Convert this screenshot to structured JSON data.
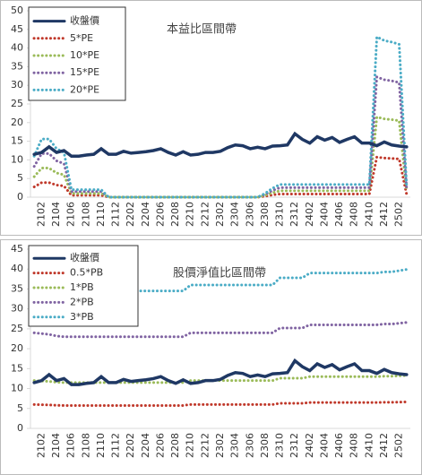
{
  "chart_data": [
    {
      "type": "line",
      "title": "本益比區間帶",
      "legend": "upper left",
      "categories": [
        null,
        "2102",
        null,
        "2104",
        null,
        "2106",
        null,
        "2108",
        null,
        "2110",
        null,
        "2112",
        null,
        "2202",
        null,
        "2204",
        null,
        "2206",
        null,
        "2208",
        null,
        "2210",
        null,
        "2212",
        null,
        "2302",
        null,
        "2304",
        null,
        "2306",
        null,
        "2308",
        null,
        "2310",
        null,
        "2312",
        null,
        "2402",
        null,
        "2404",
        null,
        "2406",
        null,
        "2408",
        null,
        "2410",
        null,
        "2412",
        null,
        "2502",
        null
      ],
      "ylim": [
        0,
        50
      ],
      "yticks": [
        0,
        5,
        10,
        15,
        20,
        25,
        30,
        35,
        40,
        45,
        50
      ],
      "series": [
        {
          "name": "收盤價",
          "color": "#1f3864",
          "line_style": "solid",
          "values": [
            11.5,
            12,
            13.5,
            12,
            12.5,
            11,
            11,
            11.3,
            11.5,
            13,
            11.5,
            11.5,
            12.3,
            11.8,
            12,
            12.2,
            12.5,
            13,
            12,
            11.3,
            12.2,
            11.3,
            11.5,
            12,
            12,
            12.3,
            13.3,
            14,
            13.8,
            13,
            13.4,
            13,
            13.7,
            13.8,
            14,
            17,
            15.5,
            14.5,
            16.2,
            15.3,
            16,
            14.7,
            15.5,
            16.2,
            14.5,
            14.5,
            13.8,
            14.8,
            14,
            13.7,
            13.5
          ]
        },
        {
          "name": "5*PE",
          "color": "#c0392b",
          "line_style": "dotted",
          "values": [
            2.75,
            3.9,
            3.9,
            3.25,
            3,
            0.5,
            0.5,
            0.5,
            0.5,
            0.5,
            0,
            0,
            0,
            0,
            0,
            0,
            0,
            0,
            0,
            0,
            0,
            0,
            0,
            0,
            0,
            0,
            0,
            0,
            0,
            0,
            0,
            0.25,
            0.6,
            0.85,
            0.85,
            0.85,
            0.85,
            0.85,
            0.85,
            0.85,
            0.85,
            0.85,
            0.85,
            0.85,
            0.85,
            0.85,
            10.75,
            10.5,
            10.4,
            10.25,
            0.75
          ]
        },
        {
          "name": "10*PE",
          "color": "#9bbb59",
          "line_style": "dotted",
          "values": [
            5.5,
            7.8,
            7.8,
            6.5,
            6,
            1,
            1,
            1,
            1,
            1,
            0,
            0,
            0,
            0,
            0,
            0,
            0,
            0,
            0,
            0,
            0,
            0,
            0,
            0,
            0,
            0,
            0,
            0,
            0,
            0,
            0,
            0.5,
            1.2,
            1.7,
            1.7,
            1.7,
            1.7,
            1.7,
            1.7,
            1.7,
            1.7,
            1.7,
            1.7,
            1.7,
            1.7,
            1.7,
            21.5,
            21,
            20.8,
            20.5,
            1.5
          ]
        },
        {
          "name": "15*PE",
          "color": "#8064a2",
          "line_style": "dotted",
          "values": [
            8.25,
            11.7,
            11.7,
            9.75,
            9,
            1.5,
            1.5,
            1.5,
            1.5,
            1.5,
            0,
            0,
            0,
            0,
            0,
            0,
            0,
            0,
            0,
            0,
            0,
            0,
            0,
            0,
            0,
            0,
            0,
            0,
            0,
            0,
            0,
            0.75,
            1.8,
            2.55,
            2.55,
            2.55,
            2.55,
            2.55,
            2.55,
            2.55,
            2.55,
            2.55,
            2.55,
            2.55,
            2.55,
            2.55,
            32.25,
            31.5,
            31.2,
            30.75,
            2.25
          ]
        },
        {
          "name": "20*PE",
          "color": "#4bacc6",
          "line_style": "dotted",
          "values": [
            11,
            15.6,
            15.6,
            13,
            12,
            2,
            2,
            2,
            2,
            2,
            0,
            0,
            0,
            0,
            0,
            0,
            0,
            0,
            0,
            0,
            0,
            0,
            0,
            0,
            0,
            0,
            0,
            0,
            0,
            0,
            0,
            1,
            2.4,
            3.4,
            3.4,
            3.4,
            3.4,
            3.4,
            3.4,
            3.4,
            3.4,
            3.4,
            3.4,
            3.4,
            3.4,
            3.4,
            43,
            42,
            41.6,
            41,
            3
          ]
        }
      ]
    },
    {
      "type": "line",
      "title": "股價淨值比區間帶",
      "legend": "upper left",
      "categories": [
        null,
        "2102",
        null,
        "2104",
        null,
        "2106",
        null,
        "2108",
        null,
        "2110",
        null,
        "2112",
        null,
        "2202",
        null,
        "2204",
        null,
        "2206",
        null,
        "2208",
        null,
        "2210",
        null,
        "2212",
        null,
        "2302",
        null,
        "2304",
        null,
        "2306",
        null,
        "2308",
        null,
        "2310",
        null,
        "2312",
        null,
        "2402",
        null,
        "2404",
        null,
        "2406",
        null,
        "2408",
        null,
        "2410",
        null,
        "2412",
        null,
        "2502",
        null
      ],
      "ylim": [
        0,
        45
      ],
      "yticks": [
        0,
        5,
        10,
        15,
        20,
        25,
        30,
        35,
        40,
        45
      ],
      "series": [
        {
          "name": "收盤價",
          "color": "#1f3864",
          "line_style": "solid",
          "values": [
            11.5,
            12,
            13.5,
            12,
            12.5,
            11,
            11,
            11.3,
            11.5,
            13,
            11.5,
            11.5,
            12.3,
            11.8,
            12,
            12.2,
            12.5,
            13,
            12,
            11.3,
            12.2,
            11.3,
            11.5,
            12,
            12,
            12.3,
            13.3,
            14,
            13.8,
            13,
            13.4,
            13,
            13.7,
            13.8,
            14,
            17,
            15.5,
            14.5,
            16.2,
            15.3,
            16,
            14.7,
            15.5,
            16.2,
            14.5,
            14.5,
            13.8,
            14.8,
            14,
            13.7,
            13.5
          ]
        },
        {
          "name": "0.5*PB",
          "color": "#c0392b",
          "line_style": "dotted",
          "values": [
            6,
            5.95,
            5.9,
            5.8,
            5.75,
            5.75,
            5.75,
            5.75,
            5.75,
            5.75,
            5.75,
            5.75,
            5.75,
            5.75,
            5.75,
            5.75,
            5.75,
            5.75,
            5.75,
            5.75,
            5.75,
            6,
            6,
            6,
            6,
            6,
            6,
            6,
            6,
            6,
            6,
            6,
            6,
            6.3,
            6.3,
            6.3,
            6.3,
            6.5,
            6.5,
            6.5,
            6.5,
            6.5,
            6.5,
            6.5,
            6.5,
            6.5,
            6.5,
            6.55,
            6.55,
            6.6,
            6.65
          ]
        },
        {
          "name": "1*PB",
          "color": "#9bbb59",
          "line_style": "dotted",
          "values": [
            12,
            11.9,
            11.8,
            11.6,
            11.5,
            11.5,
            11.5,
            11.5,
            11.5,
            11.5,
            11.5,
            11.5,
            11.5,
            11.5,
            11.5,
            11.5,
            11.5,
            11.5,
            11.5,
            11.5,
            11.5,
            12,
            12,
            12,
            12,
            12,
            12,
            12,
            12,
            12,
            12,
            12,
            12,
            12.6,
            12.6,
            12.6,
            12.6,
            13,
            13,
            13,
            13,
            13,
            13,
            13,
            13,
            13,
            13,
            13.1,
            13.1,
            13.2,
            13.3
          ]
        },
        {
          "name": "2*PB",
          "color": "#8064a2",
          "line_style": "dotted",
          "values": [
            24,
            23.8,
            23.6,
            23.2,
            23,
            23,
            23,
            23,
            23,
            23,
            23,
            23,
            23,
            23,
            23,
            23,
            23,
            23,
            23,
            23,
            23,
            24,
            24,
            24,
            24,
            24,
            24,
            24,
            24,
            24,
            24,
            24,
            24,
            25.2,
            25.2,
            25.2,
            25.2,
            26,
            26,
            26,
            26,
            26,
            26,
            26,
            26,
            26,
            26,
            26.2,
            26.2,
            26.4,
            26.6
          ]
        },
        {
          "name": "3*PB",
          "color": "#4bacc6",
          "line_style": "dotted",
          "values": [
            36,
            35.7,
            35.4,
            34.8,
            34.5,
            34.5,
            34.5,
            34.5,
            34.5,
            34.5,
            34.5,
            34.5,
            34.5,
            34.5,
            34.5,
            34.5,
            34.5,
            34.5,
            34.5,
            34.5,
            34.5,
            36,
            36,
            36,
            36,
            36,
            36,
            36,
            36,
            36,
            36,
            36,
            36,
            37.8,
            37.8,
            37.8,
            37.8,
            39,
            39,
            39,
            39,
            39,
            39,
            39,
            39,
            39,
            39,
            39.3,
            39.3,
            39.6,
            39.9
          ]
        }
      ]
    }
  ]
}
